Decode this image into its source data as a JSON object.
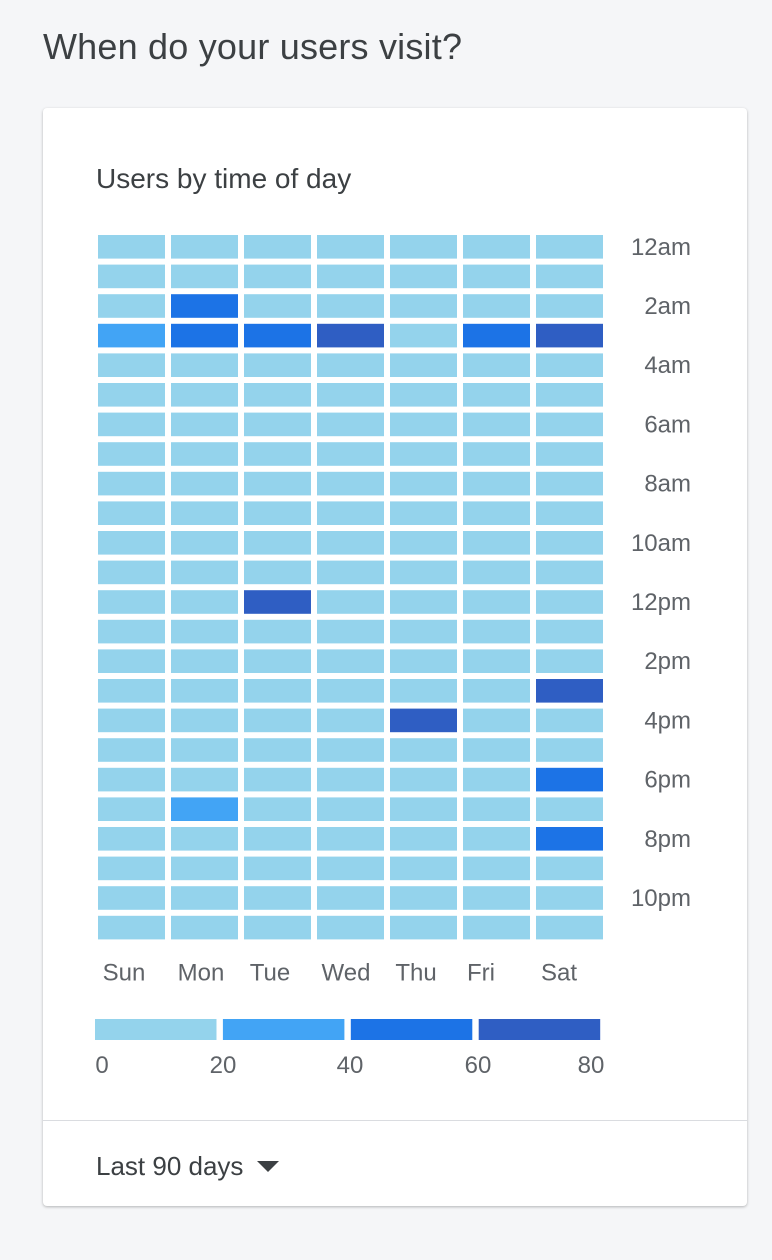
{
  "section_title": "When do your users visit?",
  "card": {
    "title": "Users by time of day",
    "range_label": "Last 90 days"
  },
  "colors": {
    "bucket_0_20": "#94d3ec",
    "bucket_20_40": "#42a4f5",
    "bucket_40_60": "#1c73e6",
    "bucket_60_80": "#2f5ec3"
  },
  "icons": {
    "range_dropdown": "caret-down-icon"
  },
  "chart_data": {
    "type": "heatmap",
    "title": "Users by time of day",
    "x_categories": [
      "Sun",
      "Mon",
      "Tue",
      "Wed",
      "Thu",
      "Fri",
      "Sat"
    ],
    "y_tick_labels": [
      "12am",
      "2am",
      "4am",
      "6am",
      "8am",
      "10am",
      "12pm",
      "2pm",
      "4pm",
      "6pm",
      "8pm",
      "10pm"
    ],
    "y_tick_every": 2,
    "legend": {
      "ticks": [
        "0",
        "20",
        "40",
        "60",
        "80"
      ],
      "thresholds": [
        0,
        20,
        40,
        60,
        80
      ]
    },
    "values": [
      [
        10,
        10,
        10,
        10,
        10,
        10,
        10
      ],
      [
        10,
        10,
        10,
        10,
        10,
        10,
        10
      ],
      [
        10,
        50,
        10,
        10,
        10,
        10,
        10
      ],
      [
        30,
        50,
        50,
        70,
        5,
        50,
        70
      ],
      [
        10,
        10,
        10,
        10,
        10,
        10,
        10
      ],
      [
        10,
        10,
        10,
        10,
        10,
        10,
        10
      ],
      [
        10,
        10,
        10,
        10,
        10,
        10,
        10
      ],
      [
        10,
        10,
        10,
        10,
        10,
        10,
        10
      ],
      [
        10,
        10,
        10,
        10,
        10,
        10,
        10
      ],
      [
        10,
        10,
        10,
        10,
        10,
        10,
        10
      ],
      [
        10,
        10,
        10,
        10,
        10,
        10,
        10
      ],
      [
        10,
        10,
        10,
        10,
        10,
        10,
        10
      ],
      [
        10,
        10,
        70,
        10,
        10,
        10,
        10
      ],
      [
        10,
        10,
        10,
        10,
        10,
        10,
        10
      ],
      [
        10,
        10,
        10,
        10,
        10,
        10,
        10
      ],
      [
        10,
        10,
        10,
        10,
        10,
        10,
        70
      ],
      [
        10,
        10,
        10,
        10,
        70,
        10,
        10
      ],
      [
        10,
        10,
        10,
        10,
        10,
        10,
        10
      ],
      [
        10,
        10,
        10,
        10,
        10,
        10,
        50
      ],
      [
        10,
        30,
        10,
        10,
        10,
        10,
        10
      ],
      [
        10,
        10,
        10,
        10,
        10,
        10,
        50
      ],
      [
        10,
        10,
        10,
        10,
        10,
        10,
        10
      ],
      [
        10,
        10,
        10,
        10,
        10,
        10,
        10
      ],
      [
        10,
        10,
        10,
        10,
        10,
        10,
        10
      ]
    ]
  }
}
